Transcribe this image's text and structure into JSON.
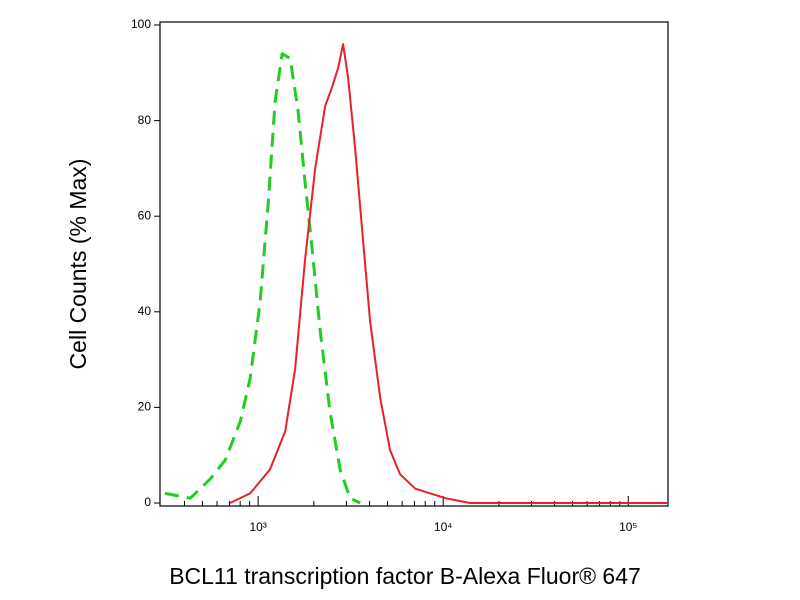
{
  "chart_data": {
    "type": "line",
    "x_label": "BCL11 transcription factor B-Alexa Fluor® 647",
    "y_label": "Cell Counts (% Max)",
    "xscale": "log",
    "xlim": [
      295,
      164000
    ],
    "ylim": [
      0,
      100
    ],
    "xticks": [
      {
        "value": 1000,
        "label": "10³"
      },
      {
        "value": 10000,
        "label": "10⁴"
      },
      {
        "value": 100000,
        "label": "10⁵"
      }
    ],
    "xminorticks": [
      400,
      500,
      600,
      700,
      800,
      900,
      2000,
      3000,
      4000,
      5000,
      6000,
      7000,
      8000,
      9000,
      20000,
      30000,
      40000,
      50000,
      60000,
      70000,
      80000,
      90000
    ],
    "yticks": [
      0,
      20,
      40,
      60,
      80,
      100
    ],
    "grid": false,
    "series": [
      {
        "color": "#22cc22",
        "dash": true,
        "x": [
          314,
          430,
          550,
          665,
          800,
          905,
          1025,
          1135,
          1235,
          1350,
          1490,
          1645,
          1795,
          1960,
          2165,
          2450,
          2775,
          3140,
          3560
        ],
        "values": [
          2,
          1,
          5,
          9,
          17,
          26,
          42,
          63,
          84,
          94,
          93,
          82,
          67,
          53,
          36,
          19,
          7,
          1,
          0
        ]
      },
      {
        "color": "#e8202a",
        "dash": false,
        "x": [
          705,
          905,
          1160,
          1400,
          1585,
          1795,
          2035,
          2300,
          2510,
          2705,
          2880,
          3065,
          3345,
          3650,
          4030,
          4565,
          5165,
          5850,
          7065,
          8530,
          10280,
          13960,
          164000
        ],
        "values": [
          0,
          2,
          7,
          15,
          28,
          51,
          70,
          83,
          87,
          91,
          96,
          89,
          74,
          57,
          38,
          22,
          11,
          6,
          3,
          2,
          1,
          0,
          0
        ]
      }
    ]
  }
}
